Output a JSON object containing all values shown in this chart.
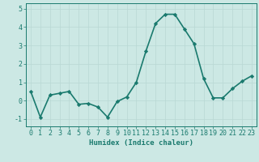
{
  "x": [
    0,
    1,
    2,
    3,
    4,
    5,
    6,
    7,
    8,
    9,
    10,
    11,
    12,
    13,
    14,
    15,
    16,
    17,
    18,
    19,
    20,
    21,
    22,
    23
  ],
  "y": [
    0.5,
    -0.9,
    0.3,
    0.4,
    0.5,
    -0.2,
    -0.15,
    -0.35,
    -0.9,
    -0.05,
    0.2,
    1.0,
    2.7,
    4.2,
    4.7,
    4.7,
    3.9,
    3.1,
    1.2,
    0.15,
    0.15,
    0.65,
    1.05,
    1.35
  ],
  "line_color": "#1a7a6e",
  "marker": "D",
  "marker_size": 2.2,
  "bg_color": "#cce8e4",
  "grid_color": "#b8d8d4",
  "xlabel": "Humidex (Indice chaleur)",
  "xlim": [
    -0.5,
    23.5
  ],
  "ylim": [
    -1.4,
    5.3
  ],
  "yticks": [
    -1,
    0,
    1,
    2,
    3,
    4,
    5
  ],
  "xticks": [
    0,
    1,
    2,
    3,
    4,
    5,
    6,
    7,
    8,
    9,
    10,
    11,
    12,
    13,
    14,
    15,
    16,
    17,
    18,
    19,
    20,
    21,
    22,
    23
  ],
  "xlabel_fontsize": 6.5,
  "tick_fontsize": 6.0,
  "line_width": 1.2
}
